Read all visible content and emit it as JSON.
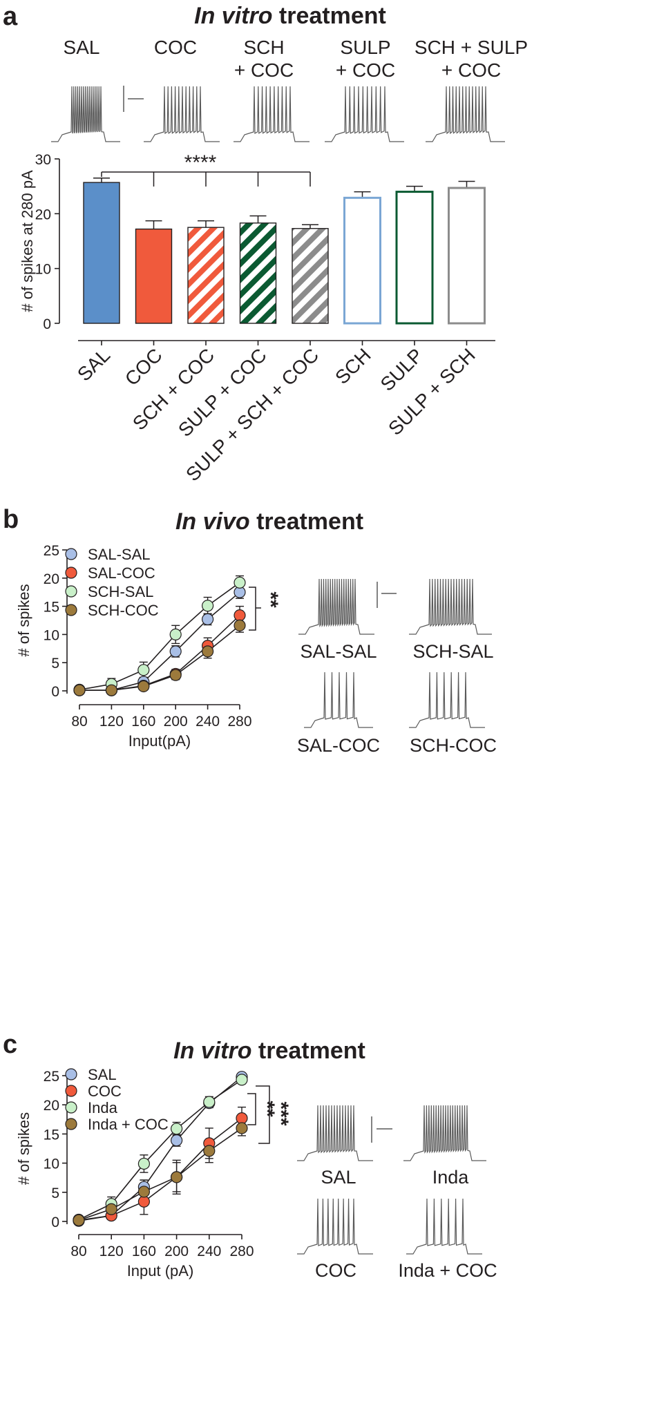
{
  "panel_a": {
    "label": "a",
    "title_italic": "In vitro",
    "title_rest": " treatment",
    "trace_labels": [
      [
        "SAL"
      ],
      [
        "COC"
      ],
      [
        "SCH",
        "+ COC"
      ],
      [
        "SULP",
        "+ COC"
      ],
      [
        "SCH + SULP",
        "+ COC"
      ]
    ],
    "significance": "****"
  },
  "panel_b": {
    "label": "b",
    "title_italic": "In vivo",
    "title_rest": " treatment",
    "trace_labels": [
      "SAL-SAL",
      "SCH-SAL",
      "SAL-COC",
      "SCH-COC"
    ],
    "significance": "**"
  },
  "panel_c": {
    "label": "c",
    "title_italic": "In vitro",
    "title_rest": " treatment",
    "trace_labels": [
      "SAL",
      "Inda",
      "COC",
      "Inda + COC"
    ],
    "significance": [
      "**",
      "***"
    ]
  },
  "chart_data": [
    {
      "type": "bar",
      "panel": "a",
      "ylabel": "# of spikes at 280 pA",
      "ylim": [
        0,
        30
      ],
      "yticks": [
        0,
        10,
        20,
        30
      ],
      "categories": [
        "SAL",
        "COC",
        "SCH + COC",
        "SULP + COC",
        "SULP + SCH + COC",
        "SCH",
        "SULP",
        "SULP + SCH"
      ],
      "values": [
        25.7,
        17.2,
        17.5,
        18.3,
        17.3,
        22.9,
        24.0,
        24.7
      ],
      "errors": [
        0.8,
        1.5,
        1.2,
        1.3,
        0.7,
        1.1,
        1.0,
        1.2
      ],
      "fill_colors": [
        "#5b8fc9",
        "#f05a3c",
        "#f05a3c",
        "#0b5a32",
        "#8c8c8c",
        "#ffffff",
        "#ffffff",
        "#ffffff"
      ],
      "edge_colors": [
        "#231f20",
        "#231f20",
        "#231f20",
        "#231f20",
        "#231f20",
        "#7aa6d4",
        "#0b5a32",
        "#8c8c8c"
      ],
      "hatched": [
        false,
        false,
        true,
        true,
        true,
        false,
        false,
        false
      ],
      "comparison": {
        "reference": "SAL",
        "targets": [
          "COC",
          "SCH + COC",
          "SULP + COC",
          "SULP + SCH + COC"
        ],
        "label": "****"
      }
    },
    {
      "type": "line",
      "panel": "b",
      "xlabel": "Input(pA)",
      "ylabel": "# of spikes",
      "x": [
        80,
        120,
        160,
        200,
        240,
        280
      ],
      "ylim": [
        0,
        25
      ],
      "yticks": [
        0,
        5,
        10,
        15,
        20,
        25
      ],
      "legend": "top-left",
      "series": [
        {
          "name": "SAL-SAL",
          "color": "#a9bfe6",
          "values": [
            0.1,
            0.1,
            1.6,
            7.0,
            12.7,
            17.5
          ],
          "errors": [
            0.3,
            0.3,
            0.8,
            1.0,
            1.0,
            1.1
          ]
        },
        {
          "name": "SAL-COC",
          "color": "#f05a3c",
          "values": [
            0.1,
            0.1,
            0.9,
            3.0,
            8.0,
            13.4
          ],
          "errors": [
            0.3,
            0.3,
            0.5,
            0.8,
            1.4,
            1.6
          ]
        },
        {
          "name": "SCH-SAL",
          "color": "#c9f0c9",
          "values": [
            0.2,
            1.2,
            3.7,
            10.0,
            15.1,
            19.2
          ],
          "errors": [
            0.3,
            1.0,
            1.4,
            1.6,
            1.5,
            1.2
          ]
        },
        {
          "name": "SCH-COC",
          "color": "#9c7a3c",
          "values": [
            0.1,
            0.1,
            0.8,
            2.8,
            7.0,
            11.6
          ],
          "errors": [
            0.3,
            0.3,
            0.5,
            0.8,
            1.2,
            1.2
          ]
        }
      ],
      "significance": "**"
    },
    {
      "type": "line",
      "panel": "c",
      "xlabel": "Input (pA)",
      "ylabel": "# of spikes",
      "x": [
        80,
        120,
        160,
        200,
        240,
        280
      ],
      "ylim": [
        0,
        25
      ],
      "yticks": [
        0,
        5,
        10,
        15,
        20,
        25
      ],
      "legend": "top-left",
      "series": [
        {
          "name": "SAL",
          "color": "#a9bfe6",
          "values": [
            0.1,
            1.0,
            5.9,
            13.9,
            20.3,
            24.8
          ],
          "errors": [
            0.3,
            0.5,
            1.2,
            1.0,
            0.8,
            0.6
          ]
        },
        {
          "name": "COC",
          "color": "#f05a3c",
          "values": [
            0.2,
            1.0,
            3.4,
            7.6,
            13.4,
            17.7
          ],
          "errors": [
            0.3,
            0.5,
            2.2,
            2.9,
            2.6,
            1.9
          ]
        },
        {
          "name": "Inda",
          "color": "#c9f0c9",
          "values": [
            0.3,
            3.0,
            9.9,
            15.9,
            20.5,
            24.3
          ],
          "errors": [
            0.3,
            1.2,
            1.5,
            1.1,
            0.9,
            0.7
          ]
        },
        {
          "name": "Inda + COC",
          "color": "#9c7a3c",
          "values": [
            0.2,
            2.1,
            5.1,
            7.6,
            12.1,
            16.0
          ],
          "errors": [
            0.3,
            0.9,
            2.0,
            2.5,
            2.0,
            1.3
          ]
        }
      ],
      "significance": [
        "**",
        "***"
      ]
    }
  ]
}
